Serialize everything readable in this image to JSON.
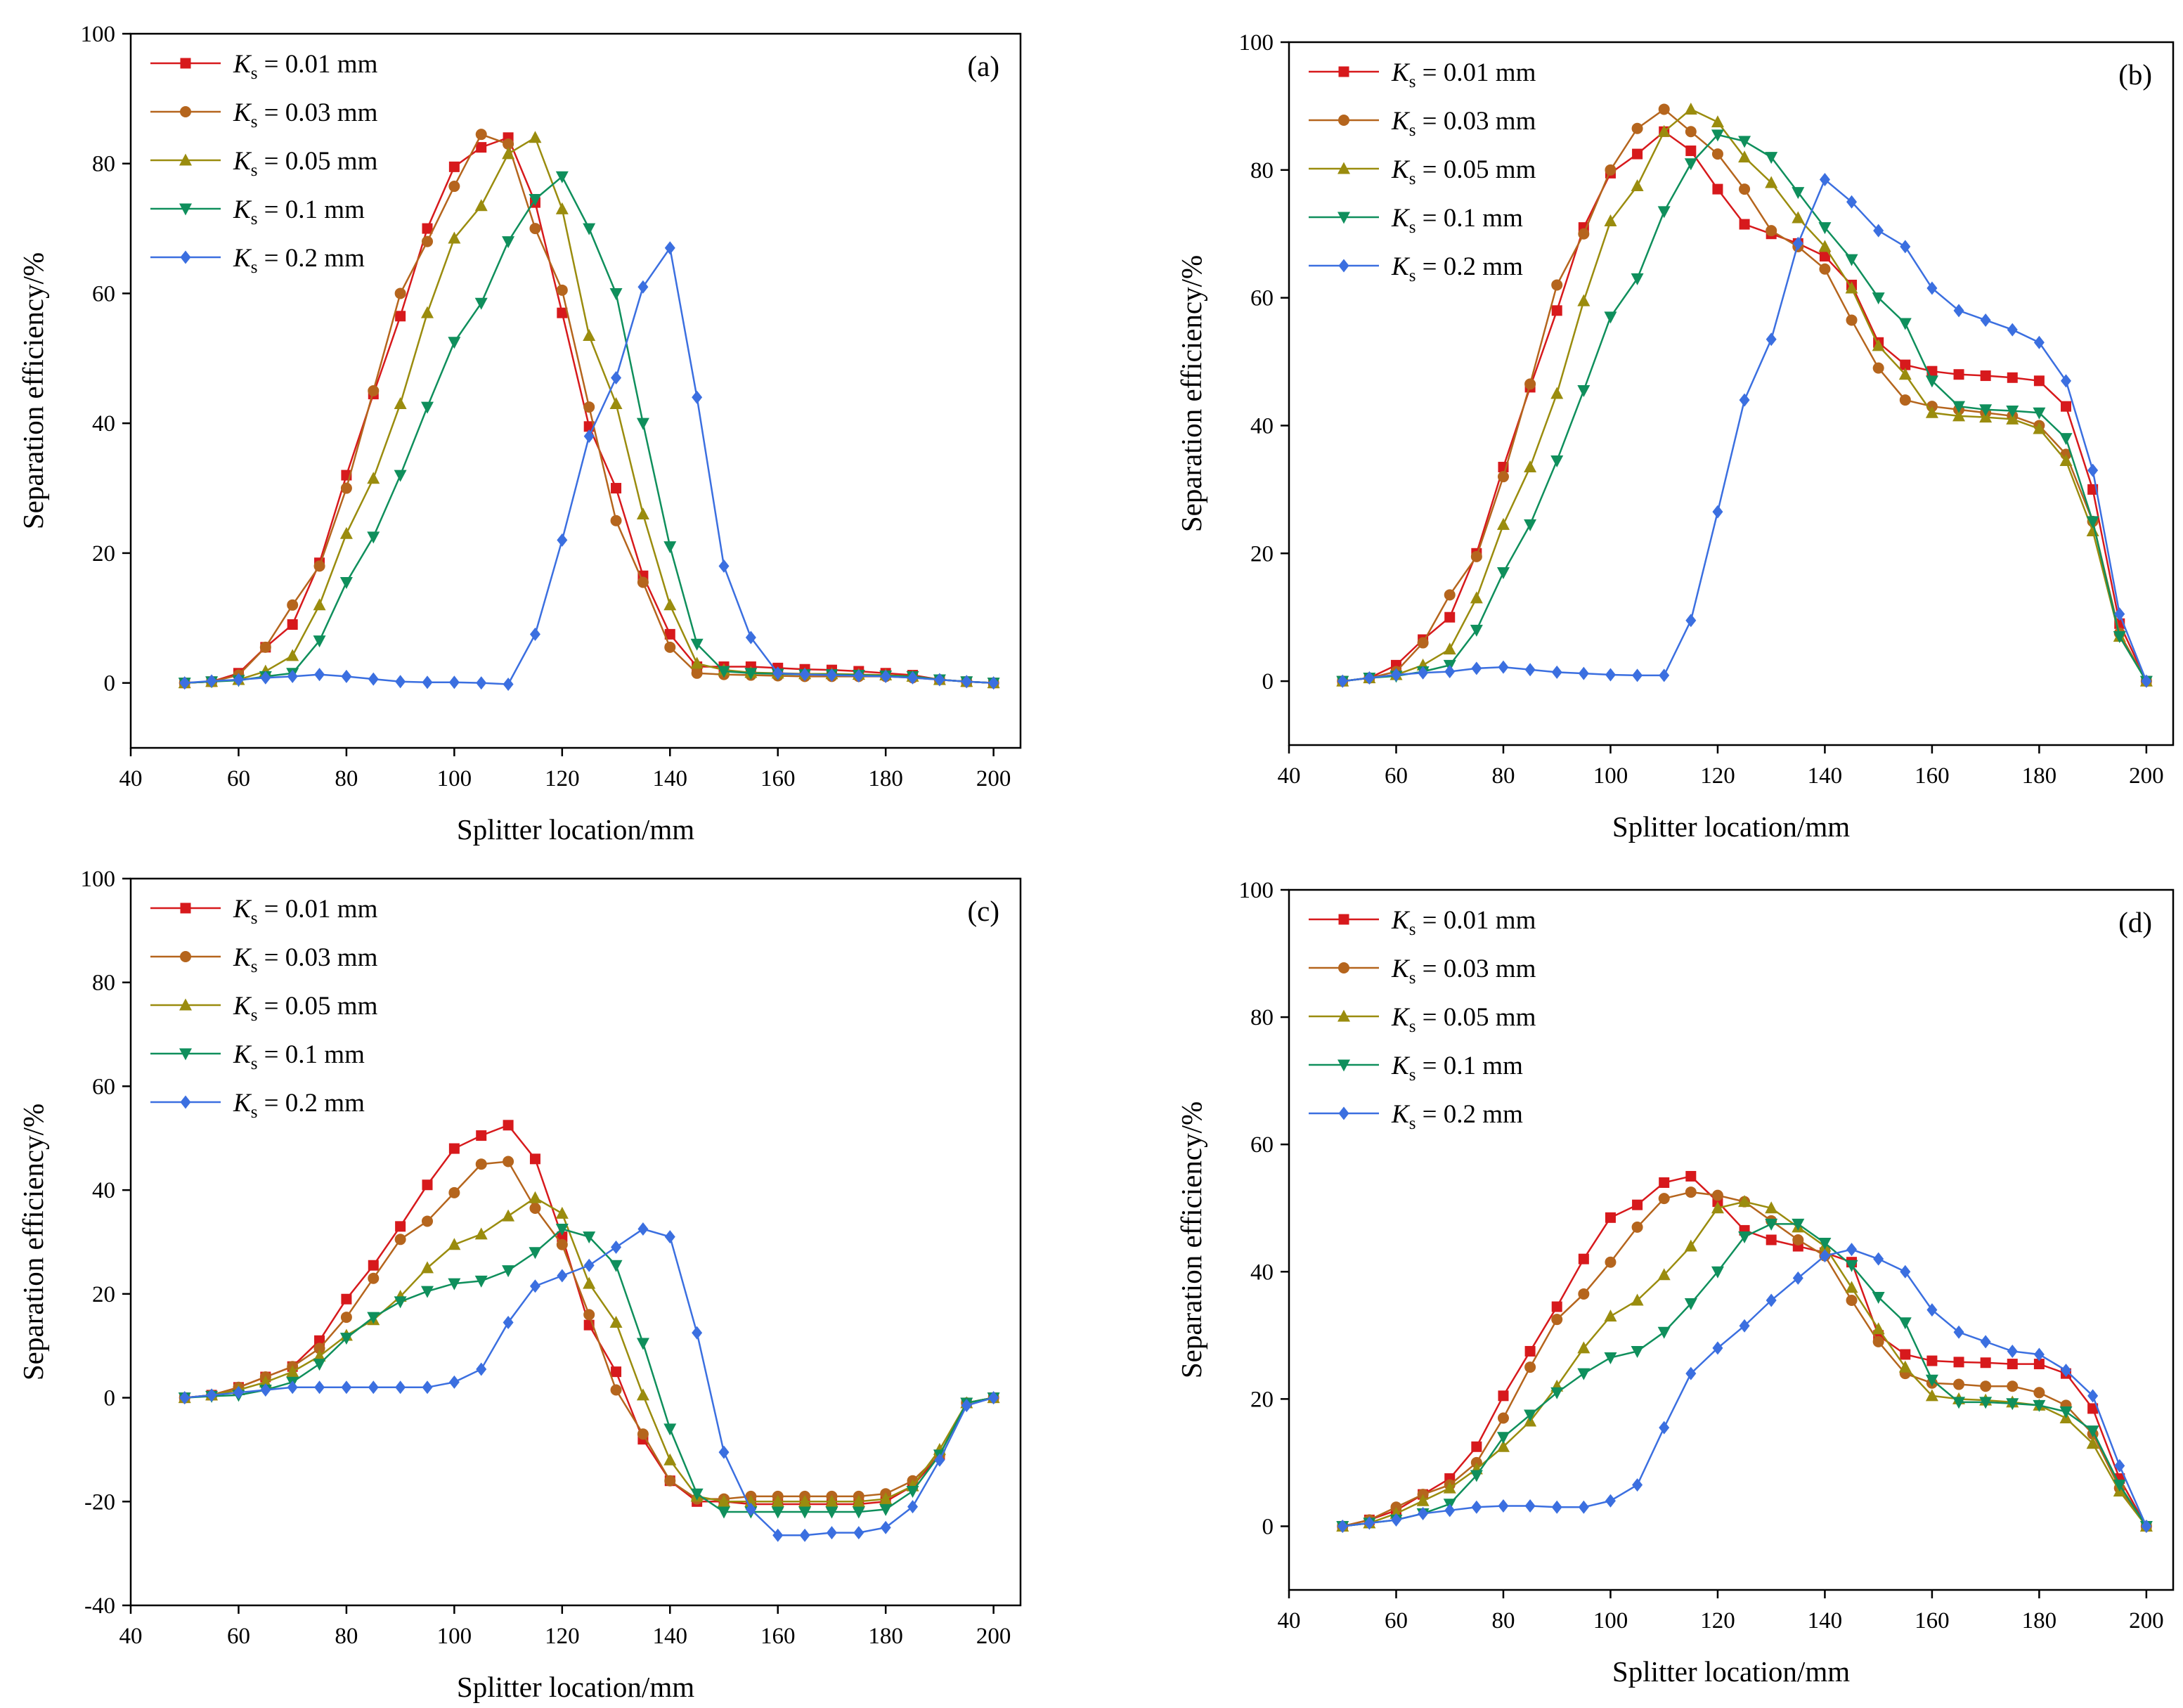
{
  "figure": {
    "xlabel": "Splitter location/mm",
    "ylabel": "Separation efficiency/%",
    "legend_prefix": "K",
    "legend_subscript": "s",
    "legend_unit": " mm",
    "colors": {
      "Ks=0.01": "#d7191c",
      "Ks=0.03": "#b5651d",
      "Ks=0.05": "#9a8c0e",
      "Ks=0.1": "#0f8f5c",
      "Ks=0.2": "#3b6fe0"
    }
  },
  "chart_data": [
    {
      "type": "line",
      "panel": "(a)",
      "xlabel": "Splitter location/mm",
      "ylabel": "Separation efficiency/%",
      "xlim": [
        40,
        205
      ],
      "ylim": [
        -10,
        100
      ],
      "xticks": [
        40,
        60,
        80,
        100,
        120,
        140,
        160,
        180,
        200
      ],
      "yticks": [
        0,
        20,
        40,
        60,
        80,
        100
      ],
      "legend_position": "top-left",
      "x": [
        50,
        55,
        60,
        65,
        70,
        75,
        80,
        85,
        90,
        95,
        100,
        105,
        110,
        115,
        120,
        125,
        130,
        135,
        140,
        145,
        150,
        155,
        160,
        165,
        170,
        175,
        180,
        185,
        190,
        195,
        200
      ],
      "series": [
        {
          "name": "Ks = 0.01 mm",
          "ks": "= 0.01",
          "color": "#d7191c",
          "marker": "square",
          "values": [
            0,
            0.2,
            1.5,
            5.5,
            9,
            18.5,
            32,
            44.5,
            56.5,
            70,
            79.5,
            82.5,
            84,
            74,
            57,
            39.5,
            30,
            16.5,
            7.5,
            2.5,
            2.5,
            2.5,
            2.3,
            2.1,
            2,
            1.8,
            1.5,
            1.2,
            0.5,
            0.2,
            0
          ]
        },
        {
          "name": "Ks = 0.03 mm",
          "ks": "= 0.03",
          "color": "#b5651d",
          "marker": "circle",
          "values": [
            0,
            0.2,
            1.2,
            5.5,
            12,
            18,
            30,
            45,
            60,
            68,
            76.5,
            84.5,
            83,
            70,
            60.5,
            42.5,
            25,
            15.5,
            5.5,
            1.5,
            1.3,
            1.2,
            1.1,
            1,
            1,
            1,
            1,
            0.8,
            0.5,
            0.2,
            0
          ]
        },
        {
          "name": "Ks = 0.05 mm",
          "ks": "= 0.05",
          "color": "#9a8c0e",
          "marker": "triangle-up",
          "values": [
            0,
            0.2,
            0.5,
            1.8,
            4.2,
            12,
            23,
            31.5,
            43,
            57,
            68.5,
            73.5,
            81.5,
            84,
            73,
            53.5,
            43,
            26,
            12,
            3,
            2,
            1.6,
            1.5,
            1.4,
            1.4,
            1.3,
            1.2,
            1,
            0.5,
            0.2,
            0
          ]
        },
        {
          "name": "Ks = 0.1 mm",
          "ks": "= 0.1",
          "color": "#0f8f5c",
          "marker": "triangle-down",
          "values": [
            0,
            0.2,
            0.4,
            1,
            1.5,
            6.5,
            15.5,
            22.5,
            32,
            42.5,
            52.5,
            58.5,
            68,
            74.5,
            78,
            70,
            60,
            40,
            21,
            6,
            1.8,
            1.5,
            1.4,
            1.3,
            1.3,
            1.2,
            1.1,
            1,
            0.5,
            0.2,
            0
          ]
        },
        {
          "name": "Ks = 0.2 mm",
          "ks": "= 0.2",
          "color": "#3b6fe0",
          "marker": "diamond",
          "values": [
            0,
            0.3,
            0.5,
            0.8,
            1,
            1.3,
            1,
            0.6,
            0.2,
            0.1,
            0.1,
            0,
            -0.2,
            7.5,
            22,
            38,
            47,
            61,
            67,
            44,
            18,
            7,
            1.5,
            1.3,
            1.2,
            1.1,
            1,
            0.8,
            0.5,
            0.2,
            0
          ]
        }
      ]
    },
    {
      "type": "line",
      "panel": "(b)",
      "xlabel": "Splitter location/mm",
      "ylabel": "Separation efficiency/%",
      "xlim": [
        40,
        205
      ],
      "ylim": [
        -10,
        100
      ],
      "xticks": [
        40,
        60,
        80,
        100,
        120,
        140,
        160,
        180,
        200
      ],
      "yticks": [
        0,
        20,
        40,
        60,
        80,
        100
      ],
      "legend_position": "top-left",
      "x": [
        50,
        55,
        60,
        65,
        70,
        75,
        80,
        85,
        90,
        95,
        100,
        105,
        110,
        115,
        120,
        125,
        130,
        135,
        140,
        145,
        150,
        155,
        160,
        165,
        170,
        175,
        180,
        185,
        190,
        195,
        200
      ],
      "series": [
        {
          "name": "Ks = 0.01 mm",
          "ks": "= 0.01",
          "color": "#d7191c",
          "marker": "square",
          "values": [
            0,
            0.5,
            2.5,
            6.5,
            10,
            20,
            33.5,
            46,
            58,
            71,
            79.5,
            82.5,
            86,
            83,
            77,
            71.5,
            70,
            68.5,
            66.5,
            62,
            53,
            49.5,
            48.5,
            48,
            47.8,
            47.5,
            47,
            43,
            30,
            9,
            0
          ]
        },
        {
          "name": "Ks = 0.03 mm",
          "ks": "= 0.03",
          "color": "#b5651d",
          "marker": "circle",
          "values": [
            0,
            0.5,
            1.5,
            6,
            13.5,
            19.5,
            32,
            46.5,
            62,
            70,
            80,
            86.5,
            89.5,
            86,
            82.5,
            77,
            70.5,
            68,
            64.5,
            56.5,
            49,
            44,
            43,
            42.5,
            42,
            41.5,
            40,
            35.5,
            25,
            7.5,
            0
          ]
        },
        {
          "name": "Ks = 0.05 mm",
          "ks": "= 0.05",
          "color": "#9a8c0e",
          "marker": "triangle-up",
          "values": [
            0,
            0.5,
            1,
            2.5,
            5,
            13,
            24.5,
            33.5,
            45,
            59.5,
            72,
            77.5,
            86,
            89.5,
            87.5,
            82,
            78,
            72.5,
            68,
            61.5,
            52.5,
            48,
            42,
            41.5,
            41.3,
            41,
            39.5,
            34.5,
            23.5,
            7,
            0
          ]
        },
        {
          "name": "Ks = 0.1 mm",
          "ks": "= 0.1",
          "color": "#0f8f5c",
          "marker": "triangle-down",
          "values": [
            0,
            0.5,
            0.8,
            1.5,
            2.5,
            8,
            17,
            24.5,
            34.5,
            45.5,
            57,
            63,
            73.5,
            81,
            85.5,
            84.5,
            82,
            76.5,
            71,
            66,
            60,
            56,
            47,
            43,
            42.5,
            42.3,
            42,
            38,
            25,
            7,
            0
          ]
        },
        {
          "name": "Ks = 0.2 mm",
          "ks": "= 0.2",
          "color": "#3b6fe0",
          "marker": "diamond",
          "values": [
            0,
            0.5,
            1,
            1.3,
            1.5,
            2,
            2.2,
            1.8,
            1.4,
            1.2,
            1,
            0.9,
            0.9,
            9.5,
            26.5,
            44,
            53.5,
            68.5,
            78.5,
            75,
            70.5,
            68,
            61.5,
            58,
            56.5,
            55,
            53,
            47,
            33,
            10.5,
            0
          ]
        }
      ]
    },
    {
      "type": "line",
      "panel": "(c)",
      "xlabel": "Splitter location/mm",
      "ylabel": "Separation efficiency/%",
      "xlim": [
        40,
        205
      ],
      "ylim": [
        -40,
        100
      ],
      "xticks": [
        40,
        60,
        80,
        100,
        120,
        140,
        160,
        180,
        200
      ],
      "yticks": [
        -40,
        -20,
        0,
        20,
        40,
        60,
        80,
        100
      ],
      "legend_position": "top-left",
      "x": [
        50,
        55,
        60,
        65,
        70,
        75,
        80,
        85,
        90,
        95,
        100,
        105,
        110,
        115,
        120,
        125,
        130,
        135,
        140,
        145,
        150,
        155,
        160,
        165,
        170,
        175,
        180,
        185,
        190,
        195,
        200
      ],
      "series": [
        {
          "name": "Ks = 0.01 mm",
          "ks": "= 0.01",
          "color": "#d7191c",
          "marker": "square",
          "values": [
            0,
            0.5,
            2,
            4,
            6,
            11,
            19,
            25.5,
            33,
            41,
            48,
            50.5,
            52.5,
            46,
            31,
            14,
            5,
            -8,
            -16,
            -20,
            -20,
            -20.5,
            -20.5,
            -20.5,
            -20.5,
            -20.5,
            -20,
            -17,
            -11,
            -1,
            0
          ]
        },
        {
          "name": "Ks = 0.03 mm",
          "ks": "= 0.03",
          "color": "#b5651d",
          "marker": "circle",
          "values": [
            0,
            0.5,
            2,
            4,
            6,
            9.5,
            15.5,
            23,
            30.5,
            34,
            39.5,
            45,
            45.5,
            36.5,
            29.5,
            16,
            1.5,
            -7,
            -16,
            -19.5,
            -19.5,
            -19,
            -19,
            -19,
            -19,
            -19,
            -18.5,
            -16,
            -11,
            -1,
            0
          ]
        },
        {
          "name": "Ks = 0.05 mm",
          "ks": "= 0.05",
          "color": "#9a8c0e",
          "marker": "triangle-up",
          "values": [
            0,
            0.5,
            1.5,
            3,
            5,
            8,
            12,
            15,
            19.5,
            25,
            29.5,
            31.5,
            35,
            38.5,
            35.5,
            22,
            14.5,
            0.5,
            -12,
            -19,
            -20,
            -20,
            -20,
            -20,
            -20,
            -20,
            -19.5,
            -17,
            -10,
            -1,
            0
          ]
        },
        {
          "name": "Ks = 0.1 mm",
          "ks": "= 0.1",
          "color": "#0f8f5c",
          "marker": "triangle-down",
          "values": [
            0,
            0.3,
            0.5,
            1.5,
            3,
            6.5,
            11.5,
            15.5,
            18.5,
            20.5,
            22,
            22.5,
            24.5,
            28,
            32.5,
            31,
            25.5,
            10.5,
            -6,
            -18.5,
            -22,
            -22,
            -22,
            -22,
            -22,
            -22,
            -21.5,
            -18,
            -11,
            -1,
            0
          ]
        },
        {
          "name": "Ks = 0.2 mm",
          "ks": "= 0.2",
          "color": "#3b6fe0",
          "marker": "diamond",
          "values": [
            0,
            0.5,
            1,
            1.5,
            2,
            2,
            2,
            2,
            2,
            2,
            3,
            5.5,
            14.5,
            21.5,
            23.5,
            25.5,
            29,
            32.5,
            31,
            12.5,
            -10.5,
            -21.5,
            -26.5,
            -26.5,
            -26,
            -26,
            -25,
            -21,
            -12,
            -1.5,
            0
          ]
        }
      ]
    },
    {
      "type": "line",
      "panel": "(d)",
      "xlabel": "Splitter location/mm",
      "ylabel": "Separation efficiency/%",
      "xlim": [
        40,
        205
      ],
      "ylim": [
        -10,
        100
      ],
      "xticks": [
        40,
        60,
        80,
        100,
        120,
        140,
        160,
        180,
        200
      ],
      "yticks": [
        0,
        20,
        40,
        60,
        80,
        100
      ],
      "legend_position": "top-left",
      "x": [
        50,
        55,
        60,
        65,
        70,
        75,
        80,
        85,
        90,
        95,
        100,
        105,
        110,
        115,
        120,
        125,
        130,
        135,
        140,
        145,
        150,
        155,
        160,
        165,
        170,
        175,
        180,
        185,
        190,
        195,
        200
      ],
      "series": [
        {
          "name": "Ks = 0.01 mm",
          "ks": "= 0.01",
          "color": "#d7191c",
          "marker": "square",
          "values": [
            0,
            1,
            2.5,
            5,
            7.5,
            12.5,
            20.5,
            27.5,
            34.5,
            42,
            48.5,
            50.5,
            54,
            55,
            51,
            46.5,
            45,
            44,
            43,
            41.5,
            30,
            27,
            26,
            25.8,
            25.7,
            25.5,
            25.5,
            24,
            18.5,
            7.5,
            0
          ]
        },
        {
          "name": "Ks = 0.03 mm",
          "ks": "= 0.03",
          "color": "#b5651d",
          "marker": "circle",
          "values": [
            0,
            1,
            3,
            5,
            6.5,
            10,
            17,
            25,
            32.5,
            36.5,
            41.5,
            47,
            51.5,
            52.5,
            52,
            51,
            48,
            45,
            42.5,
            35.5,
            29,
            24,
            22.5,
            22.3,
            22,
            22,
            21,
            19,
            14.5,
            6,
            0
          ]
        },
        {
          "name": "Ks = 0.05 mm",
          "ks": "= 0.05",
          "color": "#9a8c0e",
          "marker": "triangle-up",
          "values": [
            0,
            0.5,
            2,
            4,
            6,
            9,
            12.5,
            16.5,
            22,
            28,
            33,
            35.5,
            39.5,
            44,
            50,
            51,
            50,
            47,
            44,
            37.5,
            31,
            25,
            20.5,
            20,
            19.8,
            19.5,
            19,
            17,
            13,
            5.5,
            0
          ]
        },
        {
          "name": "Ks = 0.1 mm",
          "ks": "= 0.1",
          "color": "#0f8f5c",
          "marker": "triangle-down",
          "values": [
            0,
            0.5,
            1,
            2,
            3.5,
            8,
            14,
            17.5,
            21,
            24,
            26.5,
            27.5,
            30.5,
            35,
            40,
            45.5,
            47.5,
            47.5,
            44.5,
            41,
            36,
            32,
            23,
            19.5,
            19.5,
            19.3,
            19,
            18,
            15,
            6.5,
            0
          ]
        },
        {
          "name": "Ks = 0.2 mm",
          "ks": "= 0.2",
          "color": "#3b6fe0",
          "marker": "diamond",
          "values": [
            0,
            0.5,
            1,
            2,
            2.5,
            3,
            3.2,
            3.2,
            3,
            3,
            4,
            6.5,
            15.5,
            24,
            28,
            31.5,
            35.5,
            39,
            42.5,
            43.5,
            42,
            40,
            34,
            30.5,
            29,
            27.5,
            27,
            24.5,
            20.5,
            9.5,
            0
          ]
        }
      ]
    }
  ]
}
